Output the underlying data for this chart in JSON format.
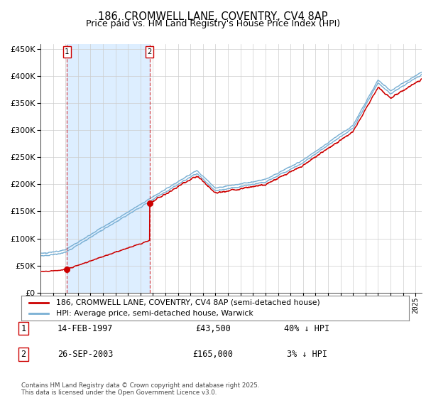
{
  "title": "186, CROMWELL LANE, COVENTRY, CV4 8AP",
  "subtitle": "Price paid vs. HM Land Registry's House Price Index (HPI)",
  "ylim": [
    0,
    460000
  ],
  "yticks": [
    0,
    50000,
    100000,
    150000,
    200000,
    250000,
    300000,
    350000,
    400000,
    450000
  ],
  "xlim_start": 1995.0,
  "xlim_end": 2025.5,
  "purchase1_date": 1997.12,
  "purchase1_price": 43500,
  "purchase1_label": "1",
  "purchase2_date": 2003.73,
  "purchase2_price": 165000,
  "purchase2_label": "2",
  "hpi_color": "#7ab0d4",
  "price_color": "#cc0000",
  "shade_color": "#ddeeff",
  "grid_color": "#cccccc",
  "background_color": "#ffffff",
  "legend_line1": "186, CROMWELL LANE, COVENTRY, CV4 8AP (semi-detached house)",
  "legend_line2": "HPI: Average price, semi-detached house, Warwick",
  "table_row1": [
    "1",
    "14-FEB-1997",
    "£43,500",
    "40% ↓ HPI"
  ],
  "table_row2": [
    "2",
    "26-SEP-2003",
    "£165,000",
    "3% ↓ HPI"
  ],
  "footnote": "Contains HM Land Registry data © Crown copyright and database right 2025.\nThis data is licensed under the Open Government Licence v3.0."
}
